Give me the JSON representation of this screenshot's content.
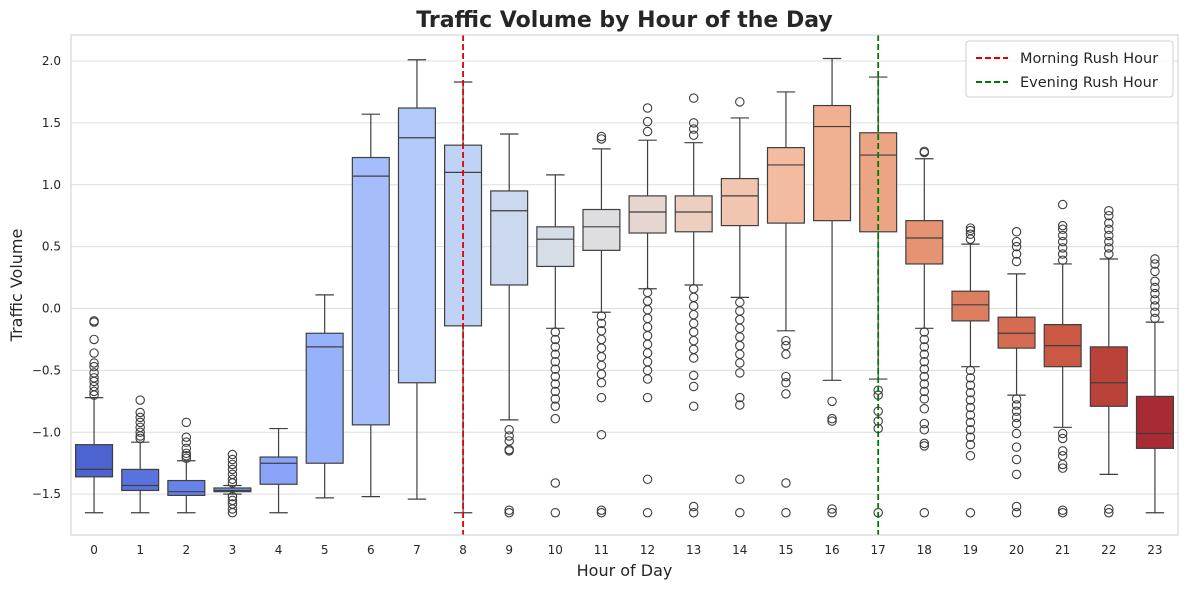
{
  "chart_data": {
    "type": "box",
    "title": "Traffic Volume by Hour of the Day",
    "xlabel": "Hour of Day",
    "ylabel": "Traffic Volume",
    "ylim": [
      -1.83,
      2.21
    ],
    "yticks": [
      -1.5,
      -1.0,
      -0.5,
      0.0,
      0.5,
      1.0,
      1.5,
      2.0
    ],
    "ytick_labels": [
      "−1.5",
      "−1.0",
      "−0.5",
      "0.0",
      "0.5",
      "1.0",
      "1.5",
      "2.0"
    ],
    "grid": "horizontal",
    "legend_position": "top-right",
    "categories": [
      "0",
      "1",
      "2",
      "3",
      "4",
      "5",
      "6",
      "7",
      "8",
      "9",
      "10",
      "11",
      "12",
      "13",
      "14",
      "15",
      "16",
      "17",
      "18",
      "19",
      "20",
      "21",
      "22",
      "23"
    ],
    "colors": [
      "#4c63d0",
      "#5a72de",
      "#6882ea",
      "#7893f2",
      "#88a3f7",
      "#97b2fa",
      "#a5befb",
      "#b3c9f9",
      "#c0d3f5",
      "#ccd8ee",
      "#d6dde7",
      "#dedde0",
      "#e6d6cf",
      "#edcfc0",
      "#f1c5b0",
      "#f3bca1",
      "#f1b092",
      "#eca584",
      "#e69373",
      "#de7e60",
      "#d56b50",
      "#ca5843",
      "#bb4239",
      "#a82a33"
    ],
    "boxes": [
      {
        "q1": -1.36,
        "median": -1.3,
        "q3": -1.1,
        "whislo": -1.65,
        "whishi": -0.72,
        "fliers": [
          -0.1,
          -0.11,
          -0.25,
          -0.36,
          -0.44,
          -0.47,
          -0.52,
          -0.56,
          -0.59,
          -0.63,
          -0.67,
          -0.7
        ]
      },
      {
        "q1": -1.47,
        "median": -1.43,
        "q3": -1.3,
        "whislo": -1.65,
        "whishi": -1.08,
        "fliers": [
          -0.74,
          -0.84,
          -0.88,
          -0.92,
          -0.96,
          -1.0,
          -1.03,
          -1.05
        ]
      },
      {
        "q1": -1.51,
        "median": -1.48,
        "q3": -1.39,
        "whislo": -1.65,
        "whishi": -1.23,
        "fliers": [
          -0.92,
          -1.04,
          -1.08,
          -1.13,
          -1.17,
          -1.19,
          -1.21
        ]
      },
      {
        "q1": -1.48,
        "median": -1.47,
        "q3": -1.45,
        "whislo": -1.5,
        "whishi": -1.43,
        "fliers": [
          -1.18,
          -1.22,
          -1.26,
          -1.3,
          -1.34,
          -1.38,
          -1.41,
          -1.52,
          -1.55,
          -1.58,
          -1.62,
          -1.65
        ]
      },
      {
        "q1": -1.42,
        "median": -1.25,
        "q3": -1.2,
        "whislo": -1.65,
        "whishi": -0.97,
        "fliers": []
      },
      {
        "q1": -1.25,
        "median": -0.31,
        "q3": -0.2,
        "whislo": -1.53,
        "whishi": 0.11,
        "fliers": []
      },
      {
        "q1": -0.94,
        "median": 1.07,
        "q3": 1.22,
        "whislo": -1.52,
        "whishi": 1.57,
        "fliers": []
      },
      {
        "q1": -0.6,
        "median": 1.38,
        "q3": 1.62,
        "whislo": -1.54,
        "whishi": 2.01,
        "fliers": []
      },
      {
        "q1": -0.14,
        "median": 1.1,
        "q3": 1.32,
        "whislo": -1.65,
        "whishi": 1.83,
        "fliers": []
      },
      {
        "q1": 0.19,
        "median": 0.79,
        "q3": 0.95,
        "whislo": -0.9,
        "whishi": 1.41,
        "fliers": [
          -0.98,
          -1.03,
          -1.07,
          -1.14,
          -1.15,
          -1.63,
          -1.65
        ]
      },
      {
        "q1": 0.34,
        "median": 0.56,
        "q3": 0.66,
        "whislo": -0.16,
        "whishi": 1.08,
        "fliers": [
          -0.19,
          -0.25,
          -0.31,
          -0.37,
          -0.43,
          -0.49,
          -0.55,
          -0.61,
          -0.67,
          -0.73,
          -0.79,
          -0.89,
          -1.41,
          -1.65
        ]
      },
      {
        "q1": 0.47,
        "median": 0.66,
        "q3": 0.8,
        "whislo": -0.03,
        "whishi": 1.29,
        "fliers": [
          1.37,
          1.39,
          -0.06,
          -0.12,
          -0.18,
          -0.25,
          -0.32,
          -0.39,
          -0.46,
          -0.53,
          -0.6,
          -0.72,
          -1.02,
          -1.63,
          -1.65
        ]
      },
      {
        "q1": 0.61,
        "median": 0.78,
        "q3": 0.91,
        "whislo": 0.16,
        "whishi": 1.36,
        "fliers": [
          1.43,
          1.51,
          1.62,
          0.13,
          0.06,
          -0.01,
          -0.08,
          -0.15,
          -0.22,
          -0.29,
          -0.36,
          -0.43,
          -0.5,
          -0.57,
          -0.72,
          -1.38,
          -1.65
        ]
      },
      {
        "q1": 0.62,
        "median": 0.78,
        "q3": 0.91,
        "whislo": 0.19,
        "whishi": 1.34,
        "fliers": [
          1.4,
          1.45,
          1.5,
          1.7,
          0.16,
          0.09,
          0.02,
          -0.05,
          -0.12,
          -0.19,
          -0.26,
          -0.33,
          -0.4,
          -0.54,
          -0.63,
          -0.79,
          -1.6,
          -1.65
        ]
      },
      {
        "q1": 0.67,
        "median": 0.91,
        "q3": 1.05,
        "whislo": 0.09,
        "whishi": 1.54,
        "fliers": [
          1.67,
          0.05,
          -0.02,
          -0.09,
          -0.16,
          -0.23,
          -0.3,
          -0.37,
          -0.44,
          -0.52,
          -0.72,
          -0.78,
          -1.38,
          -1.65
        ]
      },
      {
        "q1": 0.69,
        "median": 1.16,
        "q3": 1.3,
        "whislo": -0.18,
        "whishi": 1.75,
        "fliers": [
          -0.26,
          -0.3,
          -0.37,
          -0.55,
          -0.6,
          -0.69,
          -1.41,
          -1.65
        ]
      },
      {
        "q1": 0.71,
        "median": 1.47,
        "q3": 1.64,
        "whislo": -0.58,
        "whishi": 2.02,
        "fliers": [
          -0.75,
          -0.89,
          -0.91,
          -1.62,
          -1.65
        ]
      },
      {
        "q1": 0.62,
        "median": 1.24,
        "q3": 1.42,
        "whislo": -0.57,
        "whishi": 1.87,
        "fliers": [
          -0.66,
          -0.7,
          -0.83,
          -0.91,
          -0.97,
          -1.65
        ]
      },
      {
        "q1": 0.36,
        "median": 0.57,
        "q3": 0.71,
        "whislo": -0.16,
        "whishi": 1.21,
        "fliers": [
          1.26,
          1.27,
          -0.19,
          -0.25,
          -0.31,
          -0.37,
          -0.43,
          -0.49,
          -0.55,
          -0.61,
          -0.67,
          -0.73,
          -0.81,
          -0.93,
          -0.98,
          -1.09,
          -1.11,
          -1.65
        ]
      },
      {
        "q1": -0.1,
        "median": 0.03,
        "q3": 0.14,
        "whislo": -0.47,
        "whishi": 0.52,
        "fliers": [
          0.56,
          0.6,
          0.63,
          0.65,
          -0.5,
          -0.56,
          -0.62,
          -0.68,
          -0.74,
          -0.8,
          -0.86,
          -0.92,
          -0.98,
          -1.04,
          -1.1,
          -1.19,
          -1.65
        ]
      },
      {
        "q1": -0.32,
        "median": -0.2,
        "q3": -0.07,
        "whislo": -0.7,
        "whishi": 0.28,
        "fliers": [
          0.38,
          0.44,
          0.5,
          0.54,
          0.62,
          -0.73,
          -0.78,
          -0.83,
          -0.88,
          -0.93,
          -1.01,
          -1.12,
          -1.22,
          -1.34,
          -1.6,
          -1.65
        ]
      },
      {
        "q1": -0.47,
        "median": -0.3,
        "q3": -0.13,
        "whislo": -0.96,
        "whishi": 0.36,
        "fliers": [
          0.39,
          0.44,
          0.49,
          0.54,
          0.59,
          0.64,
          0.67,
          0.84,
          -1.01,
          -1.05,
          -1.15,
          -1.19,
          -1.26,
          -1.29,
          -1.63,
          -1.65
        ]
      },
      {
        "q1": -0.79,
        "median": -0.6,
        "q3": -0.31,
        "whislo": -1.34,
        "whishi": 0.4,
        "fliers": [
          0.44,
          0.49,
          0.54,
          0.59,
          0.64,
          0.69,
          0.75,
          0.79,
          -1.62,
          -1.65
        ]
      },
      {
        "q1": -1.13,
        "median": -1.01,
        "q3": -0.71,
        "whislo": -1.65,
        "whishi": -0.11,
        "fliers": [
          -0.08,
          -0.03,
          0.02,
          0.07,
          0.12,
          0.17,
          0.22,
          0.3,
          0.36,
          0.4
        ]
      }
    ],
    "vlines": [
      {
        "x": "8",
        "name": "Morning Rush Hour",
        "color": "#e00000"
      },
      {
        "x": "17",
        "name": "Evening Rush Hour",
        "color": "#007a00"
      }
    ]
  }
}
